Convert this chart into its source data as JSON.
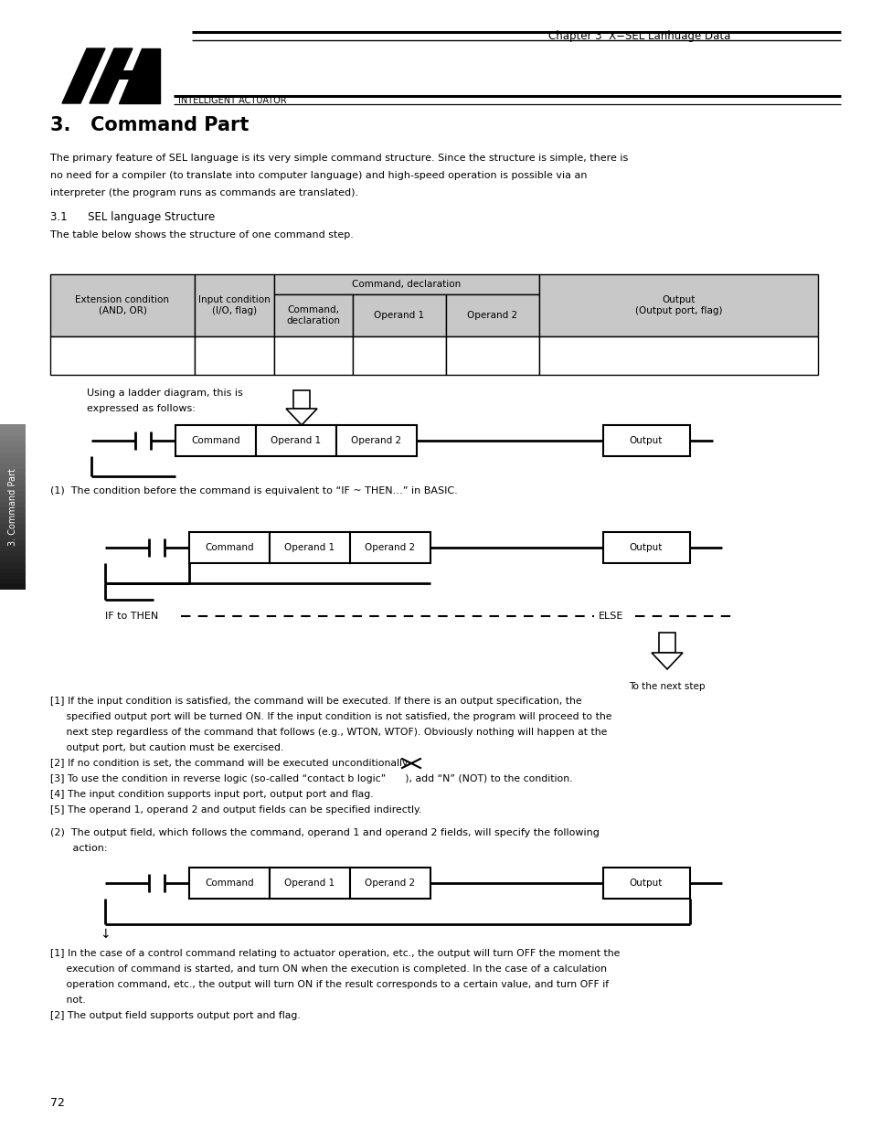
{
  "bg_color": "#ffffff",
  "page_width": 9.54,
  "page_height": 12.35,
  "header_chapter": "Chapter 3  X−SEL Lanhuage Data",
  "header_brand": "INTELLIGENT ACTUATOR",
  "title": "3.   Command Part",
  "para1_lines": [
    "The primary feature of SEL language is its very simple command structure. Since the structure is simple, there is",
    "no need for a compiler (to translate into computer language) and high-speed operation is possible via an",
    "interpreter (the program runs as commands are translated)."
  ],
  "section_title": "3.1      SEL language Structure",
  "section_sub": "The table below shows the structure of one command step.",
  "table_header_gray": "#c8c8c8",
  "ladder_note_line1": "Using a ladder diagram, this is",
  "ladder_note_line2": "expressed as follows:",
  "condition1_text": "(1)  The condition before the command is equivalent to “IF ~ THEN…” in BASIC.",
  "bullet_items_1": [
    "[1] If the input condition is satisfied, the command will be executed. If there is an output specification, the",
    "     specified output port will be turned ON. If the input condition is not satisfied, the program will proceed to the",
    "     next step regardless of the command that follows (e.g., WTON, WTOF). Obviously nothing will happen at the",
    "     output port, but caution must be exercised.",
    "[2] If no condition is set, the command will be executed unconditionally.",
    "[3] To use the condition in reverse logic (so-called “contact b logic”      ), add “N” (NOT) to the condition.",
    "[4] The input condition supports input port, output port and flag.",
    "[5] The operand 1, operand 2 and output fields can be specified indirectly."
  ],
  "condition2_line1": "(2)  The output field, which follows the command, operand 1 and operand 2 fields, will specify the following",
  "condition2_line2": "       action:",
  "bullet_items_2": [
    "[1] In the case of a control command relating to actuator operation, etc., the output will turn OFF the moment the",
    "     execution of command is started, and turn ON when the execution is completed. In the case of a calculation",
    "     operation command, etc., the output will turn ON if the result corresponds to a certain value, and turn OFF if",
    "     not.",
    "[2] The output field supports output port and flag."
  ],
  "page_number": "72",
  "sidebar_text": "3. Command Part"
}
